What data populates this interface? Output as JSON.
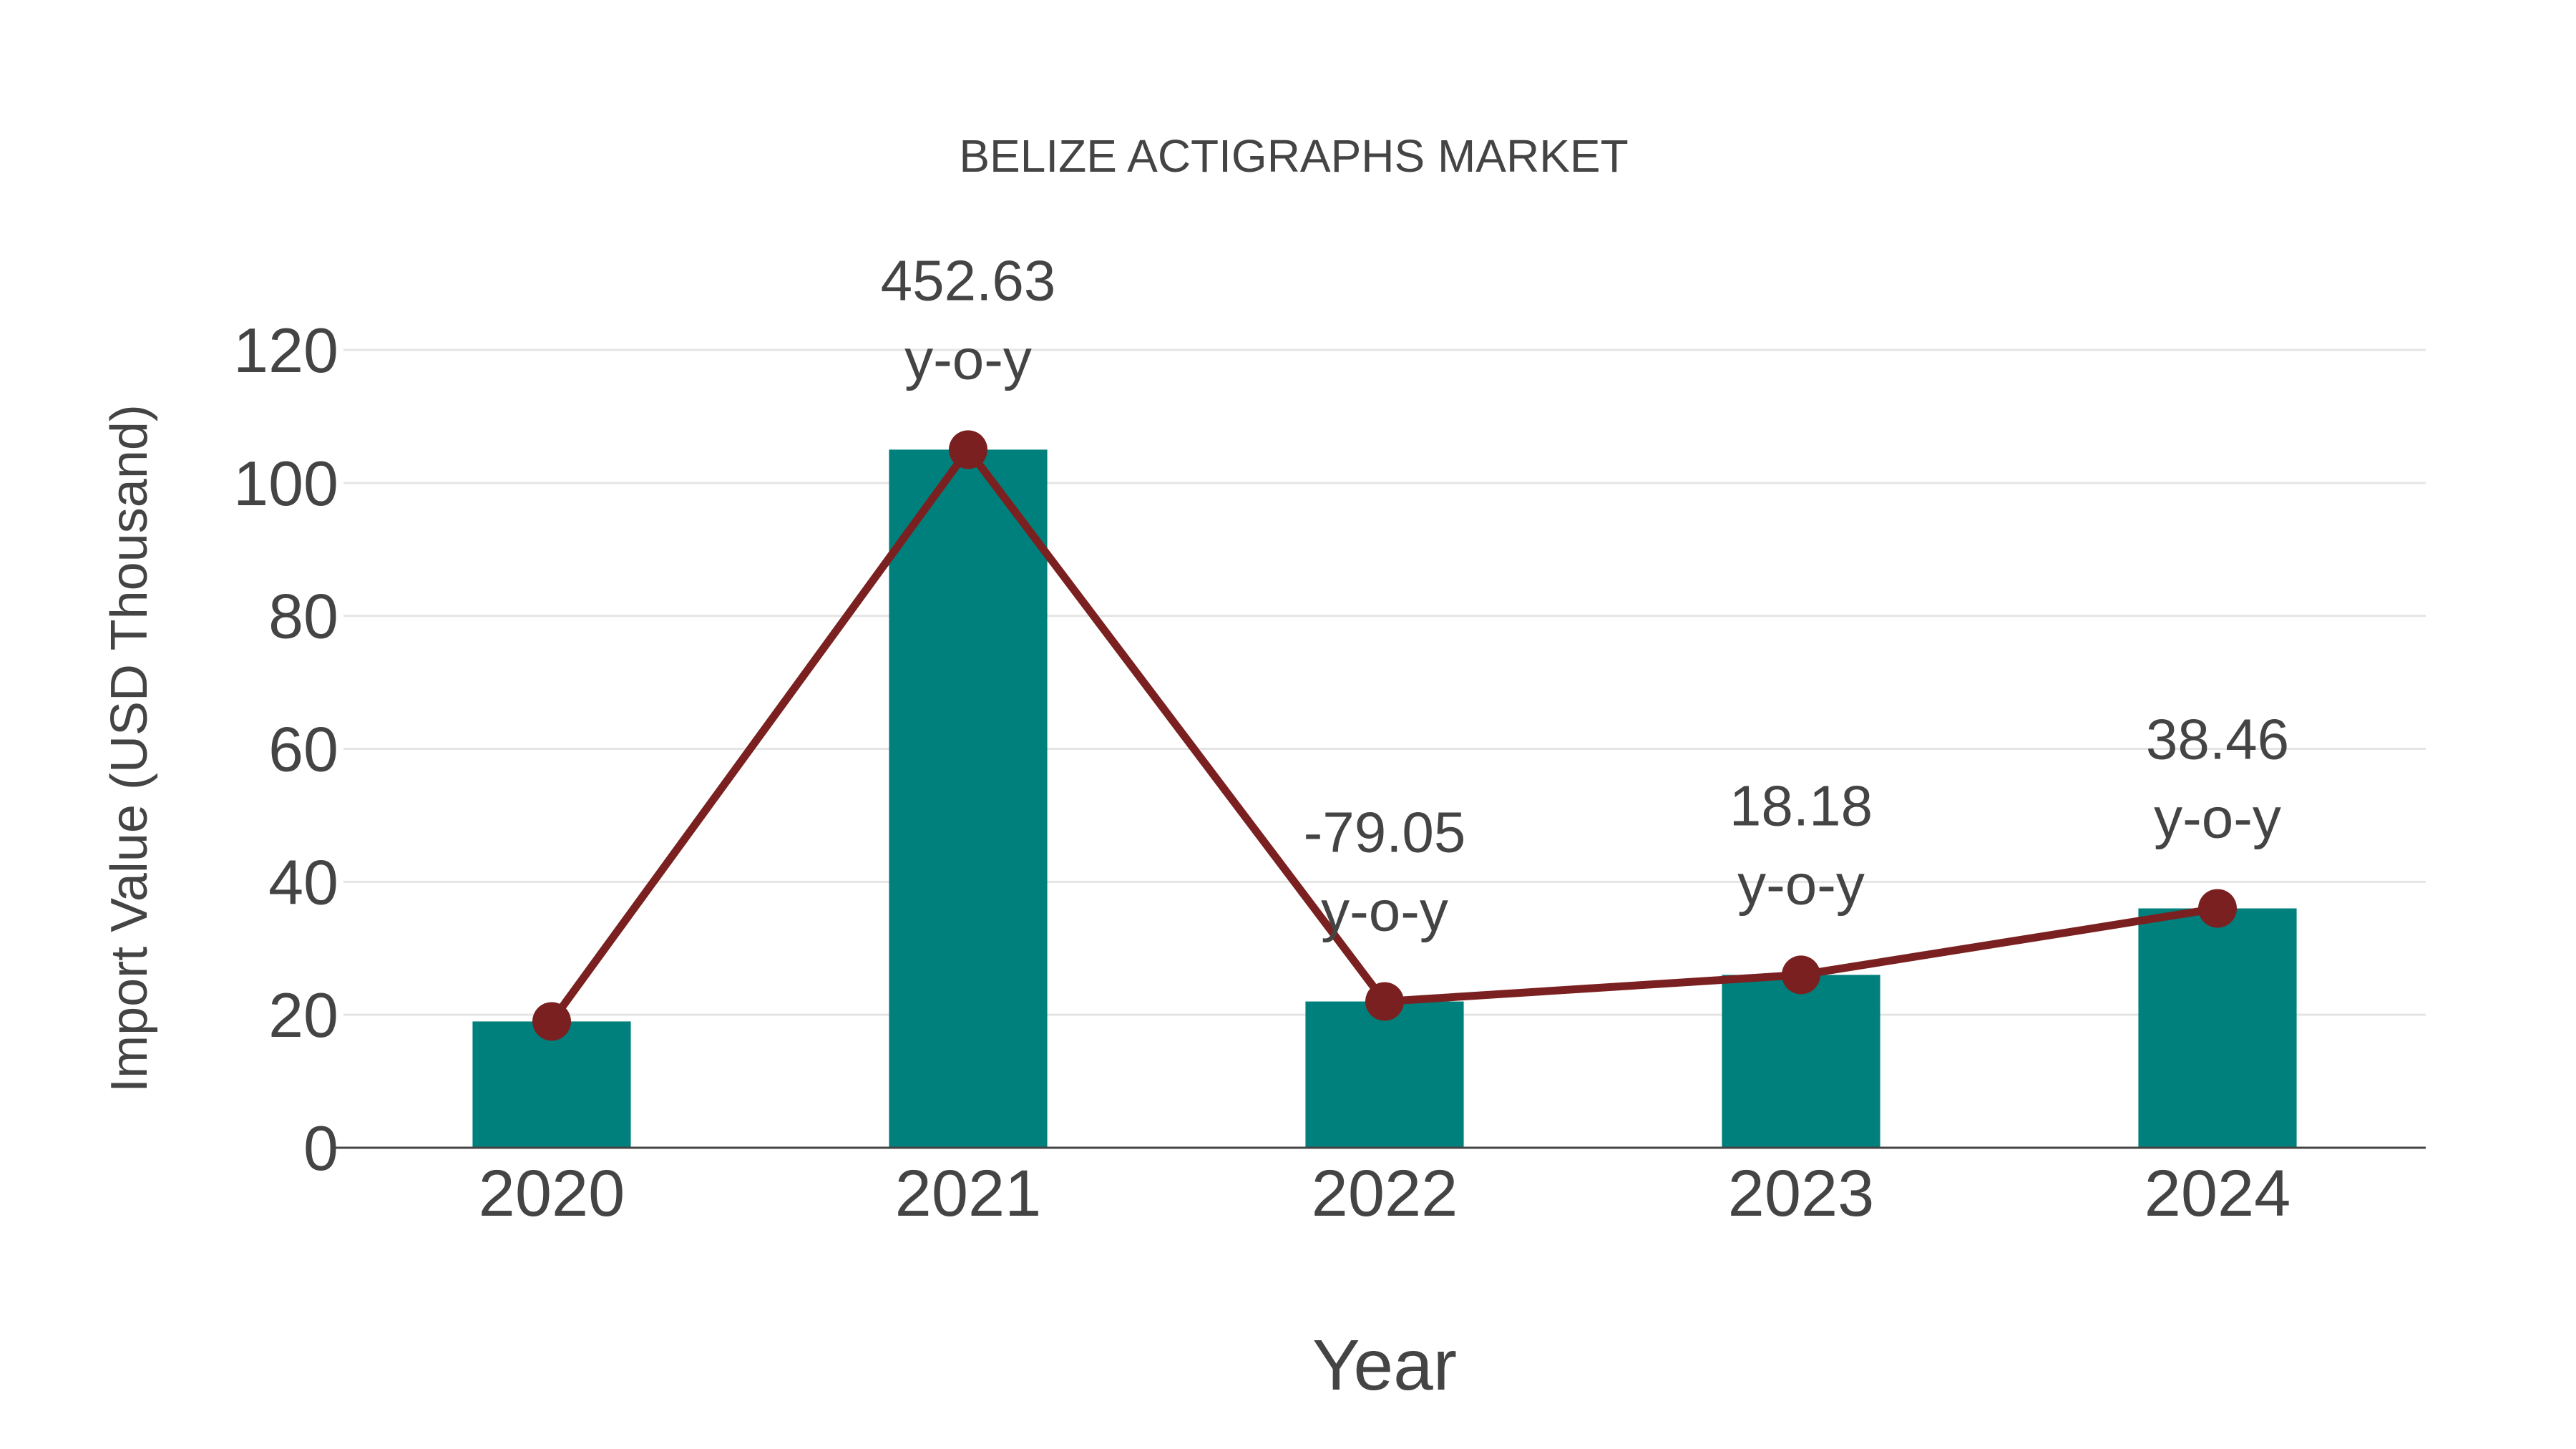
{
  "chart_data": {
    "type": "bar",
    "title": "BELIZE ACTIGRAPHS MARKET",
    "xlabel": "Year",
    "ylabel": "Import Value (USD Thousand)",
    "categories": [
      "2020",
      "2021",
      "2022",
      "2023",
      "2024"
    ],
    "series": [
      {
        "name": "Import Value",
        "type": "bar",
        "values": [
          19,
          105,
          22,
          26,
          36
        ],
        "color": "#00807c"
      },
      {
        "name": "Trend",
        "type": "line",
        "values": [
          19,
          105,
          22,
          26,
          36
        ],
        "color": "#7b2020",
        "markers": true
      }
    ],
    "annotations": [
      {
        "category": "2021",
        "value": "452.63",
        "suffix": "y-o-y"
      },
      {
        "category": "2022",
        "value": "-79.05",
        "suffix": "y-o-y"
      },
      {
        "category": "2023",
        "value": "18.18",
        "suffix": "y-o-y"
      },
      {
        "category": "2024",
        "value": "38.46",
        "suffix": "y-o-y"
      }
    ],
    "yticks": [
      0,
      20,
      40,
      60,
      80,
      100,
      120
    ],
    "ylim": [
      0,
      120
    ],
    "grid": true,
    "legend": "none"
  }
}
